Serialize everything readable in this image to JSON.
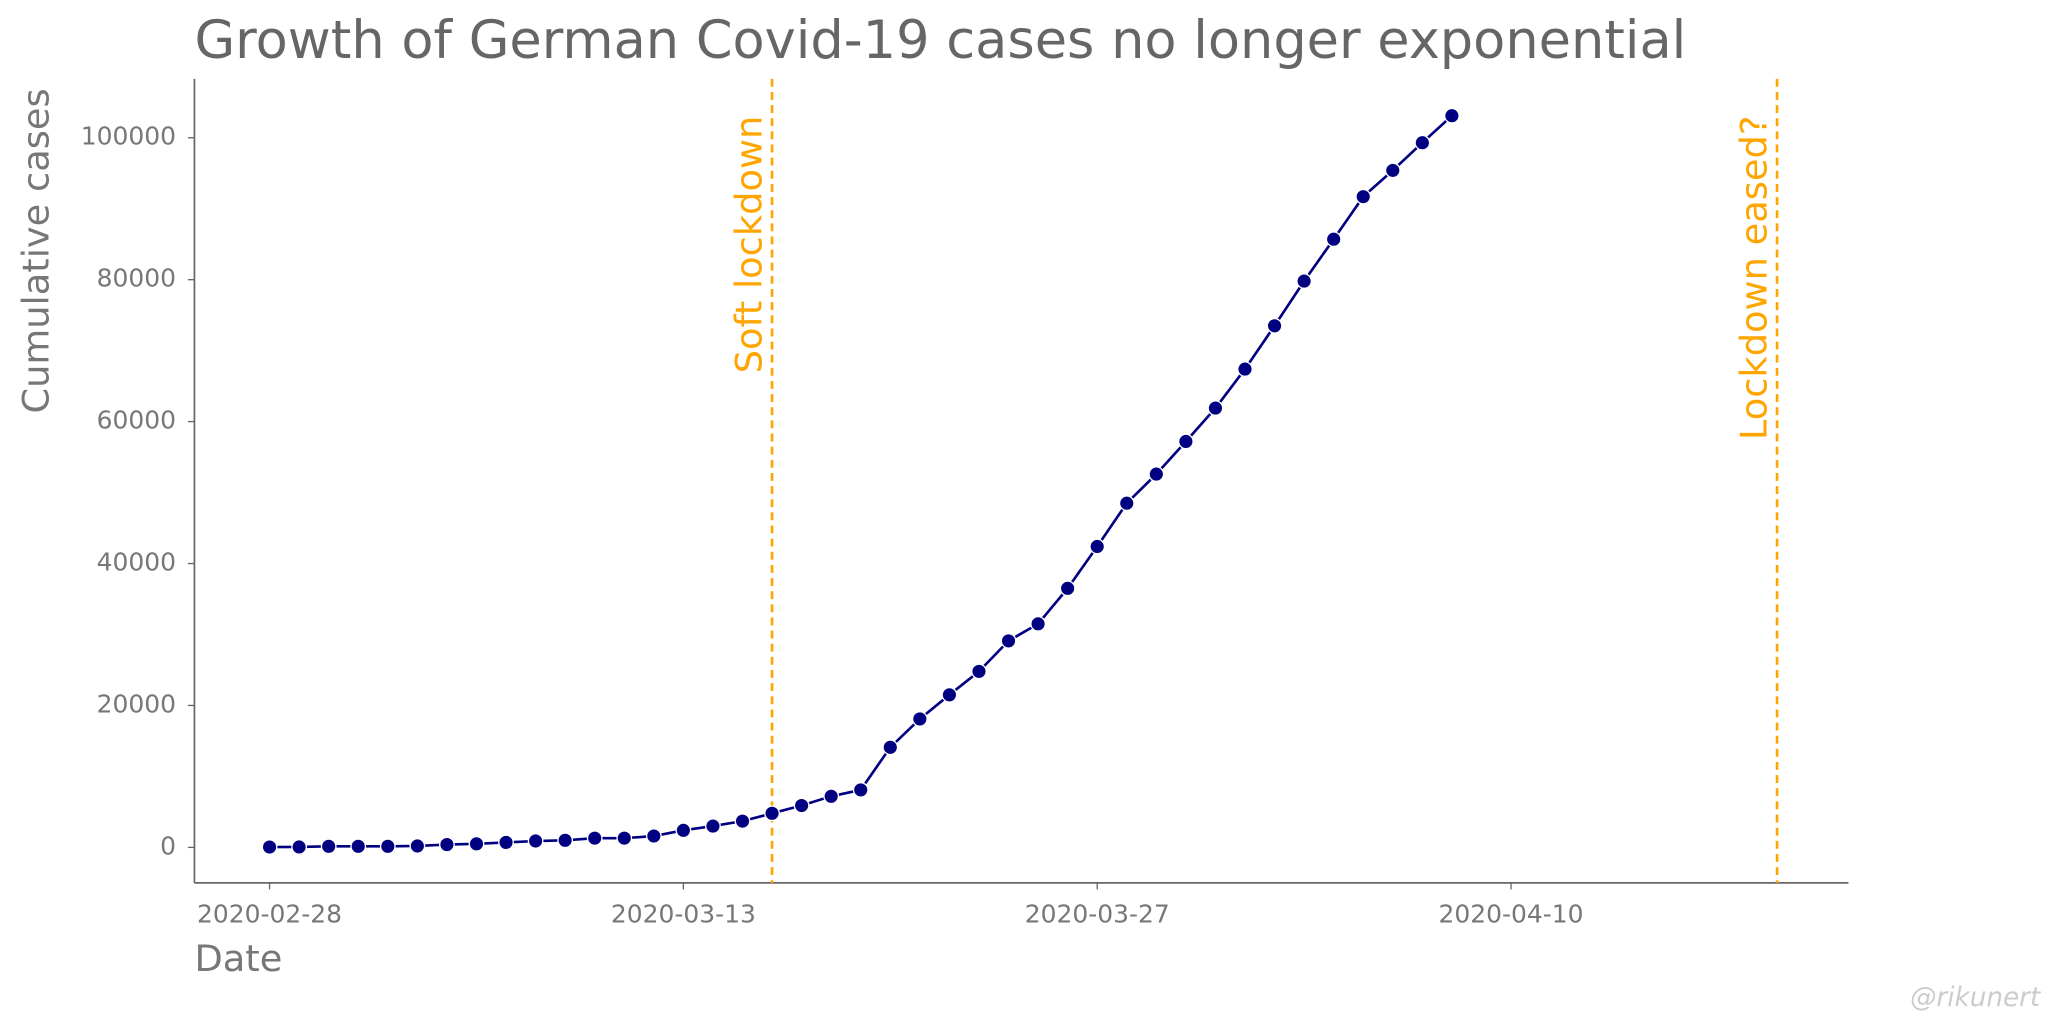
{
  "chart_data": {
    "type": "line",
    "title": "Growth of German Covid-19 cases no longer exponential",
    "x_label": "Date",
    "y_label": "Cumulative cases",
    "x": [
      "2020-02-28",
      "2020-02-29",
      "2020-03-01",
      "2020-03-02",
      "2020-03-03",
      "2020-03-04",
      "2020-03-05",
      "2020-03-06",
      "2020-03-07",
      "2020-03-08",
      "2020-03-09",
      "2020-03-10",
      "2020-03-11",
      "2020-03-12",
      "2020-03-13",
      "2020-03-14",
      "2020-03-15",
      "2020-03-16",
      "2020-03-17",
      "2020-03-18",
      "2020-03-19",
      "2020-03-20",
      "2020-03-21",
      "2020-03-22",
      "2020-03-23",
      "2020-03-24",
      "2020-03-25",
      "2020-03-26",
      "2020-03-27",
      "2020-03-28",
      "2020-03-29",
      "2020-03-30",
      "2020-03-31",
      "2020-04-01",
      "2020-04-02",
      "2020-04-03",
      "2020-04-04",
      "2020-04-05",
      "2020-04-06",
      "2020-04-07",
      "2020-04-08"
    ],
    "series": [
      {
        "name": "Cumulative cases",
        "color": "#000080",
        "values": [
          50,
          60,
          150,
          150,
          150,
          200,
          400,
          500,
          700,
          900,
          1000,
          1300,
          1300,
          1600,
          2400,
          3000,
          3700,
          4800,
          5900,
          7200,
          8100,
          14100,
          18100,
          21500,
          24800,
          29100,
          31500,
          36500,
          42400,
          48500,
          52600,
          57200,
          61900,
          67400,
          73500,
          79800,
          85700,
          91700,
          95400,
          99300,
          103100
        ]
      }
    ],
    "annotations": [
      {
        "x": "2020-03-16",
        "label": "Soft lockdown",
        "color": "#ffa500"
      },
      {
        "x": "2020-04-19",
        "label": "Lockdown eased?",
        "color": "#ffa500"
      }
    ],
    "watermark": "@rikunert",
    "xlim": [
      "2020-02-25T11:00",
      "2020-04-21T10:00"
    ],
    "xticks": [
      "2020-02-28",
      "2020-03-13",
      "2020-03-27",
      "2020-04-10"
    ],
    "ylim": [
      -5000,
      108300
    ],
    "yticks": [
      0,
      20000,
      40000,
      60000,
      80000,
      100000
    ],
    "grid": false
  }
}
